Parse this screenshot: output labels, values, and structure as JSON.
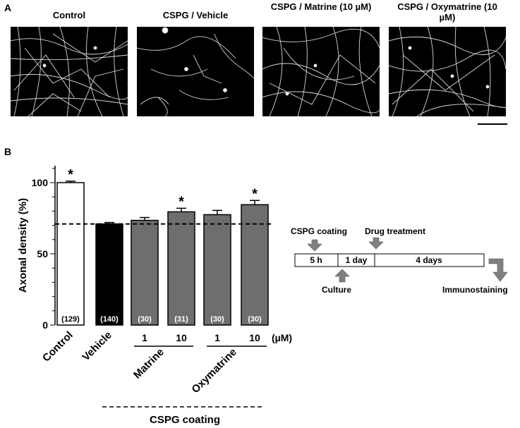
{
  "panel_a": {
    "letter": "A",
    "images": [
      {
        "title": "Control"
      },
      {
        "title": "CSPG / Vehicle"
      },
      {
        "title": "CSPG / Matrine (10 µM)"
      },
      {
        "title": "CSPG / Oxymatrine (10 µM)"
      }
    ]
  },
  "panel_b": {
    "letter": "B"
  },
  "chart_data": {
    "type": "bar",
    "ylabel": "Axonal density (%)",
    "ylim": [
      0,
      105
    ],
    "yticks": [
      0,
      50,
      100
    ],
    "reference_line": 71,
    "categories": [
      "Control",
      "Vehicle",
      "Matrine 1",
      "Matrine 10",
      "Oxymatrine 1",
      "Oxymatrine 10"
    ],
    "dose_labels": [
      "",
      "",
      "1",
      "10",
      "1",
      "10"
    ],
    "dose_unit": "(µM)",
    "values": [
      100,
      71,
      73.5,
      79.5,
      77.5,
      84.5
    ],
    "errors": [
      1,
      1,
      2,
      2.5,
      3,
      3
    ],
    "n_labels": [
      "(129)",
      "(140)",
      "(30)",
      "(31)",
      "(30)",
      "(30)"
    ],
    "significant": [
      true,
      false,
      false,
      true,
      false,
      true
    ],
    "bar_colors": [
      "#ffffff",
      "#000000",
      "#6e6e6e",
      "#6e6e6e",
      "#6e6e6e",
      "#6e6e6e"
    ],
    "group_labels": [
      "Control",
      "Vehicle",
      "Matrine",
      "Oxymatrine"
    ],
    "coating_label": "CSPG coating",
    "star": "*"
  },
  "timeline": {
    "cspg_coating": "CSPG coating",
    "drug_treatment": "Drug treatment",
    "culture": "Culture",
    "immunostaining": "Immunostaining",
    "seg_5h": "5 h",
    "seg_1day": "1 day",
    "seg_4days": "4 days"
  }
}
